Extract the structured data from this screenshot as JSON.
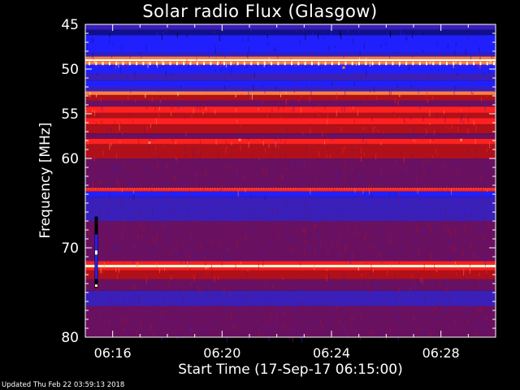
{
  "chart_data": {
    "type": "heatmap",
    "title": "Solar radio Flux (Glasgow)",
    "xlabel": "Start Time (17-Sep-17 06:15:00)",
    "ylabel": "Frequency [MHz]",
    "x_ticks": [
      "06:16",
      "06:20",
      "06:24",
      "06:28"
    ],
    "x_tick_minutes": [
      1,
      5,
      9,
      13
    ],
    "xlim_minutes": [
      0,
      15
    ],
    "y_ticks": [
      45,
      50,
      55,
      60,
      70,
      80
    ],
    "ylim": [
      45,
      80
    ],
    "colormap": [
      "#000000",
      "#10108a",
      "#2020ff",
      "#3a1fb8",
      "#6a1060",
      "#b0101a",
      "#ff2020",
      "#ff8040",
      "#ffffd0",
      "#ffffff"
    ],
    "bands": [
      {
        "from": 45.0,
        "to": 45.6,
        "level": 3
      },
      {
        "from": 45.6,
        "to": 46.2,
        "level": 1
      },
      {
        "from": 46.2,
        "to": 48.2,
        "level": 2
      },
      {
        "from": 48.2,
        "to": 48.6,
        "level": 3
      },
      {
        "from": 48.6,
        "to": 48.9,
        "level": 7
      },
      {
        "from": 48.9,
        "to": 49.1,
        "level": 9
      },
      {
        "from": 49.1,
        "to": 49.5,
        "level": 7
      },
      {
        "from": 49.5,
        "to": 50.5,
        "level": 2
      },
      {
        "from": 50.5,
        "to": 51.3,
        "level": 3
      },
      {
        "from": 51.3,
        "to": 52.0,
        "level": 2
      },
      {
        "from": 52.0,
        "to": 52.5,
        "level": 3
      },
      {
        "from": 52.5,
        "to": 52.9,
        "level": 7
      },
      {
        "from": 52.9,
        "to": 53.5,
        "level": 5
      },
      {
        "from": 53.5,
        "to": 54.2,
        "level": 4
      },
      {
        "from": 54.2,
        "to": 54.9,
        "level": 6
      },
      {
        "from": 54.9,
        "to": 55.5,
        "level": 5
      },
      {
        "from": 55.5,
        "to": 56.2,
        "level": 6
      },
      {
        "from": 56.2,
        "to": 57.2,
        "level": 5
      },
      {
        "from": 57.2,
        "to": 57.8,
        "level": 4
      },
      {
        "from": 57.8,
        "to": 58.4,
        "level": 6
      },
      {
        "from": 58.4,
        "to": 60.0,
        "level": 5
      },
      {
        "from": 60.0,
        "to": 61.5,
        "level": 4
      },
      {
        "from": 61.5,
        "to": 63.3,
        "level": 4
      },
      {
        "from": 63.3,
        "to": 63.7,
        "level": 6
      },
      {
        "from": 63.7,
        "to": 64.3,
        "level": 2
      },
      {
        "from": 64.3,
        "to": 67.0,
        "level": 3
      },
      {
        "from": 67.0,
        "to": 69.5,
        "level": 4
      },
      {
        "from": 69.5,
        "to": 71.5,
        "level": 4
      },
      {
        "from": 71.5,
        "to": 71.9,
        "level": 6
      },
      {
        "from": 71.9,
        "to": 72.2,
        "level": 8
      },
      {
        "from": 72.2,
        "to": 72.5,
        "level": 6
      },
      {
        "from": 72.5,
        "to": 73.5,
        "level": 5
      },
      {
        "from": 73.5,
        "to": 74.8,
        "level": 4
      },
      {
        "from": 74.8,
        "to": 76.5,
        "level": 3
      },
      {
        "from": 76.5,
        "to": 80.0,
        "level": 4
      }
    ],
    "vertical_burst": {
      "time_minutes": 0.4,
      "freq_from": 66.5,
      "freq_to": 74.5
    }
  },
  "footer": {
    "updated": "Updated Thu Feb 22 03:59:13 2018"
  }
}
